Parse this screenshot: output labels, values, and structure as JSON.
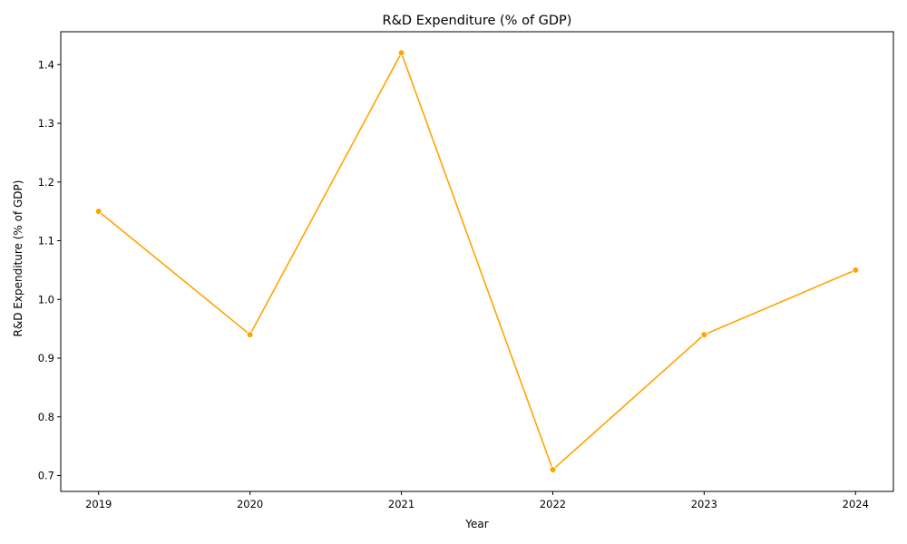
{
  "chart_data": {
    "type": "line",
    "title": "R&D Expenditure (% of GDP)",
    "xlabel": "Year",
    "ylabel": "R&D Expenditure (% of GDP)",
    "x": [
      "2019",
      "2020",
      "2021",
      "2022",
      "2023",
      "2024"
    ],
    "series": [
      {
        "values": [
          1.15,
          0.94,
          1.42,
          0.71,
          0.94,
          1.05
        ],
        "color": "#ffa500",
        "marker": "circle"
      }
    ],
    "xlim": [
      2018.75,
      2024.25
    ],
    "ylim": [
      0.673,
      1.456
    ],
    "yticks": [
      "0.7",
      "0.8",
      "0.9",
      "1.0",
      "1.1",
      "1.2",
      "1.3",
      "1.4"
    ],
    "grid": false,
    "legend": "none"
  }
}
